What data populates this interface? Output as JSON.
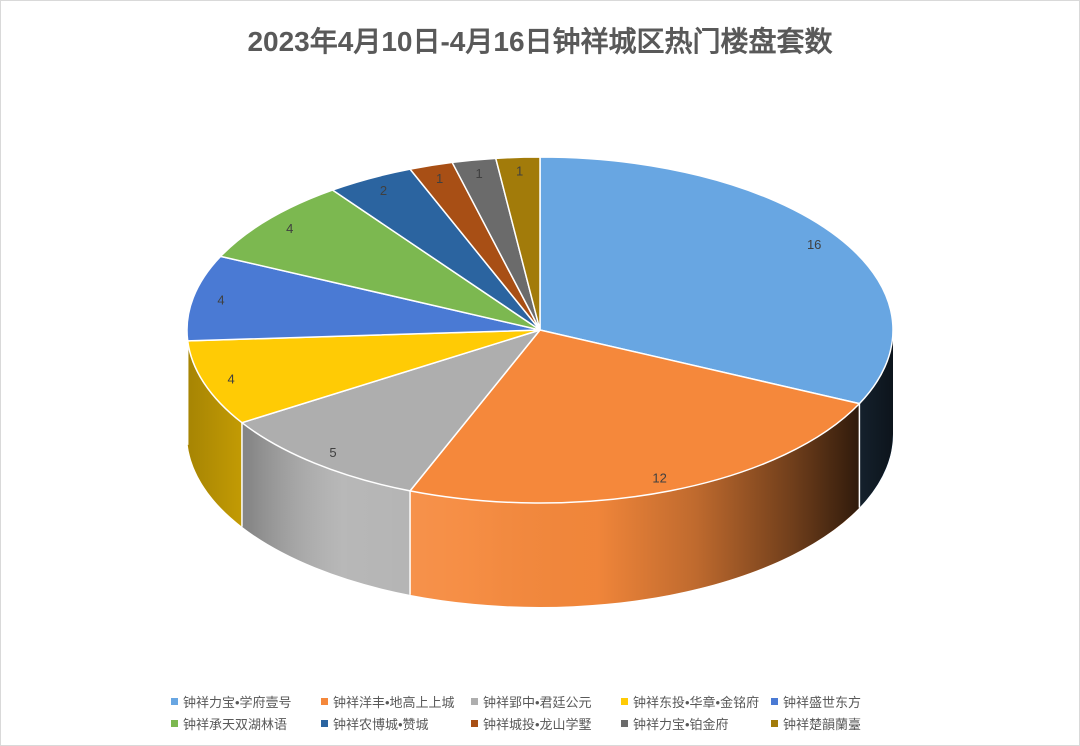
{
  "chart_data": {
    "type": "pie",
    "style": "3d",
    "title": "2023年4月10日-4月16日钟祥城区热门楼盘套数",
    "categories": [
      "钟祥力宝•学府壹号",
      "钟祥洋丰•地高上上城",
      "钟祥郢中•君廷公元",
      "钟祥东投•华章•金铭府",
      "钟祥盛世东方",
      "钟祥承天双湖林语",
      "钟祥农博城•赞城",
      "钟祥城投•龙山学墅",
      "钟祥力宝•铂金府",
      "钟祥楚韻蘭臺"
    ],
    "values": [
      16,
      12,
      5,
      4,
      4,
      4,
      2,
      1,
      1,
      1
    ],
    "colors": [
      "#68A6E2",
      "#F5883B",
      "#AEAEAE",
      "#FFCB05",
      "#4A7AD4",
      "#7CB850",
      "#2B64A0",
      "#A84F15",
      "#6B6B6B",
      "#A27B0A"
    ],
    "data_labels": true,
    "legend_position": "bottom"
  }
}
